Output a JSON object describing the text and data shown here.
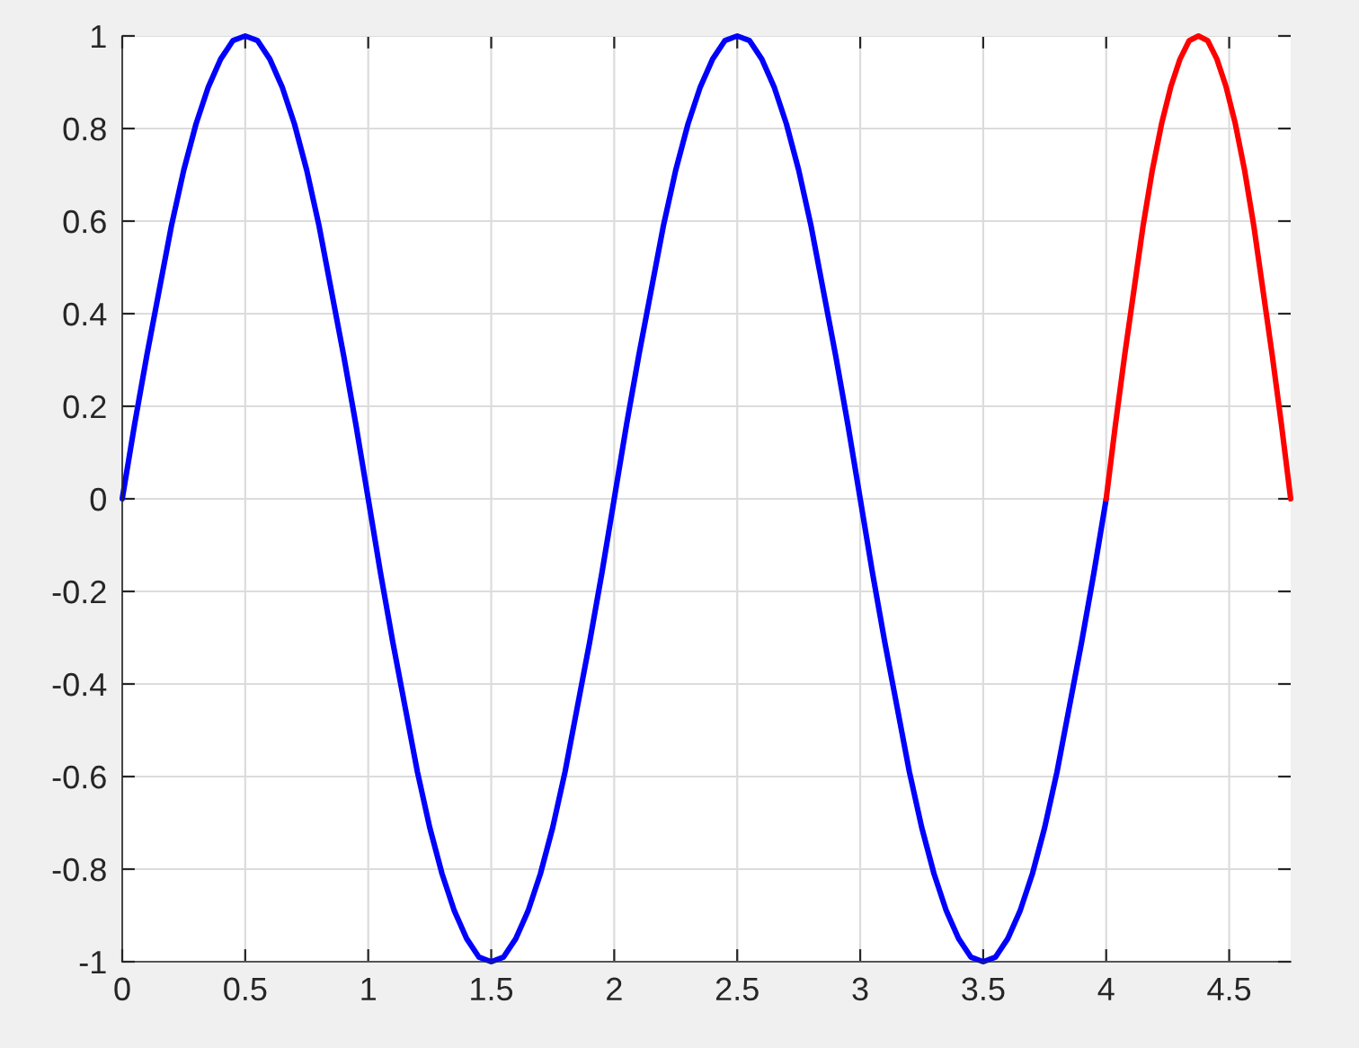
{
  "chart_data": {
    "type": "line",
    "series": [
      {
        "color": "#0000ff",
        "x": [
          0,
          0.05,
          0.1,
          0.15,
          0.2,
          0.25,
          0.3,
          0.35,
          0.4,
          0.45,
          0.5,
          0.55,
          0.6,
          0.65,
          0.7,
          0.75,
          0.8,
          0.85,
          0.9,
          0.95,
          1,
          1.05,
          1.1,
          1.15,
          1.2,
          1.25,
          1.3,
          1.35,
          1.4,
          1.45,
          1.5,
          1.55,
          1.6,
          1.65,
          1.7,
          1.75,
          1.8,
          1.85,
          1.9,
          1.95,
          2,
          2.05,
          2.1,
          2.15,
          2.2,
          2.25,
          2.3,
          2.35,
          2.4,
          2.45,
          2.5,
          2.55,
          2.6,
          2.65,
          2.7,
          2.75,
          2.8,
          2.85,
          2.9,
          2.95,
          3,
          3.05,
          3.1,
          3.15,
          3.2,
          3.25,
          3.3,
          3.35,
          3.4,
          3.45,
          3.5,
          3.55,
          3.6,
          3.65,
          3.7,
          3.75,
          3.8,
          3.85,
          3.9,
          3.95,
          4
        ],
        "values": [
          0,
          0.16,
          0.31,
          0.45,
          0.59,
          0.71,
          0.81,
          0.89,
          0.95,
          0.99,
          1,
          0.99,
          0.95,
          0.89,
          0.81,
          0.71,
          0.59,
          0.45,
          0.31,
          0.16,
          0,
          -0.16,
          -0.31,
          -0.45,
          -0.59,
          -0.71,
          -0.81,
          -0.89,
          -0.95,
          -0.99,
          -1,
          -0.99,
          -0.95,
          -0.89,
          -0.81,
          -0.71,
          -0.59,
          -0.45,
          -0.31,
          -0.16,
          0,
          0.16,
          0.31,
          0.45,
          0.59,
          0.71,
          0.81,
          0.89,
          0.95,
          0.99,
          1,
          0.99,
          0.95,
          0.89,
          0.81,
          0.71,
          0.59,
          0.45,
          0.31,
          0.16,
          0,
          -0.16,
          -0.31,
          -0.45,
          -0.59,
          -0.71,
          -0.81,
          -0.89,
          -0.95,
          -0.99,
          -1,
          -0.99,
          -0.95,
          -0.89,
          -0.81,
          -0.71,
          -0.59,
          -0.45,
          -0.31,
          -0.16,
          0
        ]
      },
      {
        "color": "#ff0000",
        "x": [
          4,
          4.0375,
          4.075,
          4.1125,
          4.15,
          4.1875,
          4.225,
          4.2625,
          4.3,
          4.3375,
          4.375,
          4.4125,
          4.45,
          4.4875,
          4.525,
          4.5625,
          4.6,
          4.6375,
          4.675,
          4.7125,
          4.75
        ],
        "values": [
          0,
          0.16,
          0.31,
          0.45,
          0.59,
          0.71,
          0.81,
          0.89,
          0.95,
          0.99,
          1,
          0.99,
          0.95,
          0.89,
          0.81,
          0.71,
          0.59,
          0.45,
          0.31,
          0.16,
          0
        ]
      }
    ],
    "xlim": [
      0,
      4.75
    ],
    "xticks": [
      0,
      0.5,
      1,
      1.5,
      2,
      2.5,
      3,
      3.5,
      4,
      4.5
    ],
    "ylim": [
      -1,
      1
    ],
    "yticks": [
      -1,
      -0.8,
      -0.6,
      -0.4,
      -0.2,
      0,
      0.2,
      0.4,
      0.6,
      0.8,
      1
    ],
    "grid": true,
    "line_style": "solid"
  }
}
